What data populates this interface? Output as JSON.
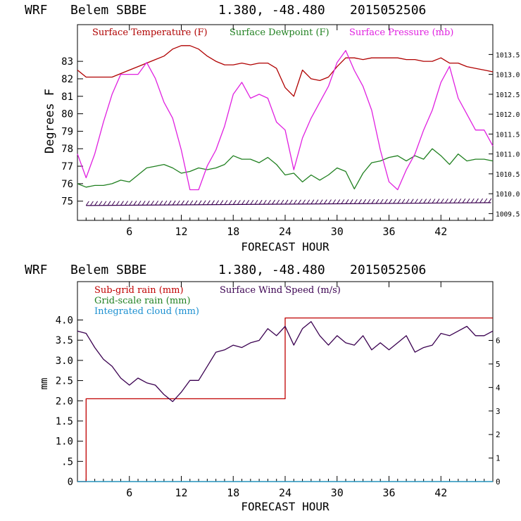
{
  "colors": {
    "temperature": "#b00000",
    "dewpoint": "#208020",
    "pressure": "#e020e0",
    "subgrid_rain": "#c00000",
    "gridscale_rain": "#208020",
    "cloud": "#1a8fd0",
    "wind": "#3a0050",
    "wind_barbs": "#3a0050",
    "frame": "#000000"
  },
  "panels": [
    {
      "title_model": "WRF",
      "title_station": "Belem SBBE",
      "title_coords": "1.380, -48.480",
      "title_date": "2015052506",
      "xlabel": "FORECAST HOUR",
      "ylabel_left": "Degrees F",
      "legend": [
        "Surface Temperature (F)",
        "Surface Dewpoint (F)",
        "Surface Pressure (mb)"
      ]
    },
    {
      "title_model": "WRF",
      "title_station": "Belem SBBE",
      "title_coords": "1.380, -48.480",
      "title_date": "2015052506",
      "xlabel": "FORECAST HOUR",
      "ylabel_left": "mm",
      "legend": [
        "Sub-grid rain (mm)",
        "Grid-scale rain (mm)",
        "Integrated cloud (mm)",
        "Surface Wind Speed (m/s)"
      ]
    }
  ],
  "chart_data": [
    {
      "type": "line",
      "title": "WRF Belem SBBE 1.380, -48.480 2015052506",
      "xlabel": "FORECAST HOUR",
      "ylabel": "Degrees F",
      "xlim": [
        0,
        48
      ],
      "x_ticks": [
        6,
        12,
        18,
        24,
        30,
        36,
        42
      ],
      "ylim": [
        73.9,
        85.1
      ],
      "y_ticks": [
        75,
        76,
        77,
        78,
        79,
        80,
        81,
        82,
        83
      ],
      "y2lim": [
        1009.33,
        1014.25
      ],
      "y2_ticks": [
        1009.5,
        1010.0,
        1010.5,
        1011.0,
        1011.5,
        1012.0,
        1012.5,
        1013.0,
        1013.5
      ],
      "legend_position": "top",
      "grid": false,
      "series": [
        {
          "name": "Surface Temperature (F)",
          "axis": "left",
          "x": [
            0,
            1,
            2,
            3,
            4,
            5,
            6,
            7,
            8,
            9,
            10,
            11,
            12,
            13,
            14,
            15,
            16,
            17,
            18,
            19,
            20,
            21,
            22,
            23,
            24,
            25,
            26,
            27,
            28,
            29,
            30,
            31,
            32,
            33,
            34,
            35,
            36,
            37,
            38,
            39,
            40,
            41,
            42,
            43,
            44,
            45,
            46,
            47,
            48
          ],
          "values": [
            82.5,
            82.1,
            82.1,
            82.1,
            82.1,
            82.3,
            82.5,
            82.7,
            82.9,
            83.1,
            83.3,
            83.7,
            83.9,
            83.9,
            83.7,
            83.3,
            83.0,
            82.8,
            82.8,
            82.9,
            82.8,
            82.9,
            82.9,
            82.6,
            81.5,
            81.0,
            82.5,
            82.0,
            81.9,
            82.1,
            82.7,
            83.2,
            83.2,
            83.1,
            83.2,
            83.2,
            83.2,
            83.2,
            83.1,
            83.1,
            83.0,
            83.0,
            83.2,
            82.9,
            82.9,
            82.7,
            82.6,
            82.5,
            82.4
          ]
        },
        {
          "name": "Surface Dewpoint (F)",
          "axis": "left",
          "x": [
            0,
            1,
            2,
            3,
            4,
            5,
            6,
            7,
            8,
            9,
            10,
            11,
            12,
            13,
            14,
            15,
            16,
            17,
            18,
            19,
            20,
            21,
            22,
            23,
            24,
            25,
            26,
            27,
            28,
            29,
            30,
            31,
            32,
            33,
            34,
            35,
            36,
            37,
            38,
            39,
            40,
            41,
            42,
            43,
            44,
            45,
            46,
            47,
            48
          ],
          "values": [
            76.0,
            75.8,
            75.9,
            75.9,
            76.0,
            76.2,
            76.1,
            76.5,
            76.9,
            77.0,
            77.1,
            76.9,
            76.6,
            76.7,
            76.9,
            76.8,
            76.9,
            77.1,
            77.6,
            77.4,
            77.4,
            77.2,
            77.5,
            77.1,
            76.5,
            76.6,
            76.1,
            76.5,
            76.2,
            76.5,
            76.9,
            76.7,
            75.7,
            76.6,
            77.2,
            77.3,
            77.5,
            77.6,
            77.3,
            77.6,
            77.4,
            78.0,
            77.6,
            77.1,
            77.7,
            77.3,
            77.4,
            77.4,
            77.3
          ]
        },
        {
          "name": "Surface Pressure (mb)",
          "axis": "right",
          "x": [
            0,
            1,
            2,
            3,
            4,
            5,
            6,
            7,
            8,
            9,
            10,
            11,
            12,
            13,
            14,
            15,
            16,
            17,
            18,
            19,
            20,
            21,
            22,
            23,
            24,
            25,
            26,
            27,
            28,
            29,
            30,
            31,
            32,
            33,
            34,
            35,
            36,
            37,
            38,
            39,
            40,
            41,
            42,
            43,
            44,
            45,
            46,
            47,
            48
          ],
          "values": [
            1011.0,
            1010.4,
            1011.0,
            1011.8,
            1012.5,
            1013.0,
            1013.0,
            1013.0,
            1013.3,
            1012.9,
            1012.3,
            1011.9,
            1011.1,
            1010.1,
            1010.1,
            1010.7,
            1011.1,
            1011.7,
            1012.5,
            1012.8,
            1012.4,
            1012.5,
            1012.4,
            1011.8,
            1011.6,
            1010.6,
            1011.4,
            1011.9,
            1012.3,
            1012.7,
            1013.3,
            1013.6,
            1013.1,
            1012.7,
            1012.1,
            1011.1,
            1010.3,
            1010.1,
            1010.6,
            1011.0,
            1011.6,
            1012.1,
            1012.8,
            1013.2,
            1012.4,
            1012.0,
            1011.6,
            1011.6,
            1011.2
          ]
        }
      ]
    },
    {
      "type": "line",
      "title": "WRF Belem SBBE 1.380, -48.480 2015052506",
      "xlabel": "FORECAST HOUR",
      "ylabel": "mm",
      "xlim": [
        0,
        48
      ],
      "x_ticks": [
        6,
        12,
        18,
        24,
        30,
        36,
        42
      ],
      "ylim": [
        0,
        4.95
      ],
      "y_ticks": [
        0,
        0.5,
        1.0,
        1.5,
        2.0,
        2.5,
        3.0,
        3.5,
        4.0
      ],
      "y_tick_labels": [
        "0",
        ".5",
        "1.0",
        "1.5",
        "2.0",
        "2.5",
        "3.0",
        "3.5",
        "4.0"
      ],
      "y2lim": [
        0,
        8.5
      ],
      "y2_ticks": [
        0,
        1,
        2,
        3,
        4,
        5,
        6
      ],
      "legend_position": "top",
      "grid": false,
      "series": [
        {
          "name": "Sub-grid rain (mm)",
          "axis": "left",
          "step": true,
          "x": [
            0,
            1,
            24,
            48
          ],
          "values": [
            0,
            2.05,
            4.05,
            4.05
          ]
        },
        {
          "name": "Grid-scale rain (mm)",
          "axis": "left",
          "x": [
            0,
            48
          ],
          "values": [
            0,
            0
          ]
        },
        {
          "name": "Integrated cloud (mm)",
          "axis": "left",
          "x": [
            0,
            48
          ],
          "values": [
            0,
            0
          ]
        },
        {
          "name": "Surface Wind Speed (m/s)",
          "axis": "right",
          "x": [
            0,
            1,
            2,
            3,
            4,
            5,
            6,
            7,
            8,
            9,
            10,
            11,
            12,
            13,
            14,
            15,
            16,
            17,
            18,
            19,
            20,
            21,
            22,
            23,
            24,
            25,
            26,
            27,
            28,
            29,
            30,
            31,
            32,
            33,
            34,
            35,
            36,
            37,
            38,
            39,
            40,
            41,
            42,
            43,
            44,
            45,
            46,
            47,
            48
          ],
          "values": [
            6.4,
            6.3,
            5.7,
            5.2,
            4.9,
            4.4,
            4.1,
            4.4,
            4.2,
            4.1,
            3.7,
            3.4,
            3.8,
            4.3,
            4.3,
            4.9,
            5.5,
            5.6,
            5.8,
            5.7,
            5.9,
            6.0,
            6.5,
            6.2,
            6.6,
            5.8,
            6.5,
            6.8,
            6.2,
            5.8,
            6.2,
            5.9,
            5.8,
            6.2,
            5.6,
            5.9,
            5.6,
            5.9,
            6.2,
            5.5,
            5.7,
            5.8,
            6.3,
            6.2,
            6.4,
            6.6,
            6.2,
            6.2,
            6.4
          ]
        }
      ]
    }
  ]
}
